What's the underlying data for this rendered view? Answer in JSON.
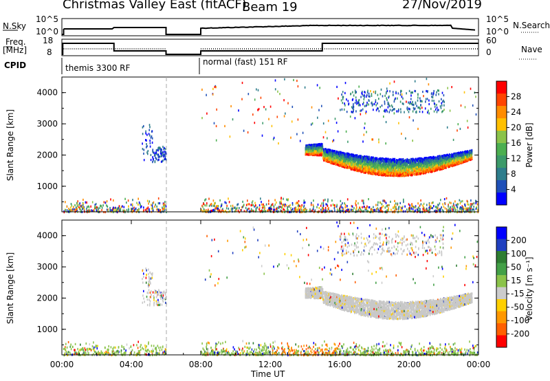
{
  "header": {
    "radar": "Christmas Valley East (fitACF)",
    "beam": "Beam 19",
    "date": "27/Nov/2019"
  },
  "panel_labels": {
    "nsky": "N.Sky",
    "nsearch": "N.Search",
    "freq_line1": "Freq.",
    "freq_line2": "[MHz]",
    "nave": "Nave",
    "cpid": "CPID",
    "cpid_mode1": "themis 3300 RF",
    "cpid_mode2": "normal (fast) 151 RF"
  },
  "noise_ticks": {
    "top": "10^5",
    "bottom": "10^0"
  },
  "freq_ticks": {
    "left_top": "18",
    "left_bottom": "8",
    "right_top": "60",
    "right_bottom": "0"
  },
  "colors": {
    "power_scale": [
      "#0000ff",
      "#1f50b8",
      "#2e7d8c",
      "#3c9a6a",
      "#4caf50",
      "#8bc34a",
      "#ffc000",
      "#ff8c00",
      "#ff4500",
      "#ff0000"
    ],
    "velocity_scale": [
      "#0000ff",
      "#2040c0",
      "#2e7d32",
      "#43a047",
      "#8bc34a",
      "#cccccc",
      "#ffd000",
      "#ff9800",
      "#ff6000",
      "#ff0000"
    ]
  },
  "chart_data": [
    {
      "type": "heatmap",
      "name": "power",
      "ylabel": "Slant Range [km]",
      "ylim": [
        180,
        4500
      ],
      "y_ticks": [
        "1000",
        "2000",
        "3000",
        "4000"
      ],
      "colorbar": {
        "label": "Power [dB]",
        "ticks": [
          "4",
          "8",
          "12",
          "16",
          "20",
          "24",
          "28"
        ],
        "range": [
          0,
          32
        ]
      }
    },
    {
      "type": "heatmap",
      "name": "velocity",
      "ylabel": "Slant Range [km]",
      "ylim": [
        180,
        4500
      ],
      "y_ticks": [
        "1000",
        "2000",
        "3000",
        "4000"
      ],
      "xlabel": "Time UT",
      "x_ticks": [
        "00:00",
        "04:00",
        "08:00",
        "12:00",
        "16:00",
        "20:00",
        "00:00"
      ],
      "colorbar": {
        "label": "Velocity [m s⁻¹]",
        "ticks": [
          "200",
          "100",
          "50",
          "15",
          "-15",
          "-50",
          "-100",
          "-200"
        ]
      }
    }
  ]
}
